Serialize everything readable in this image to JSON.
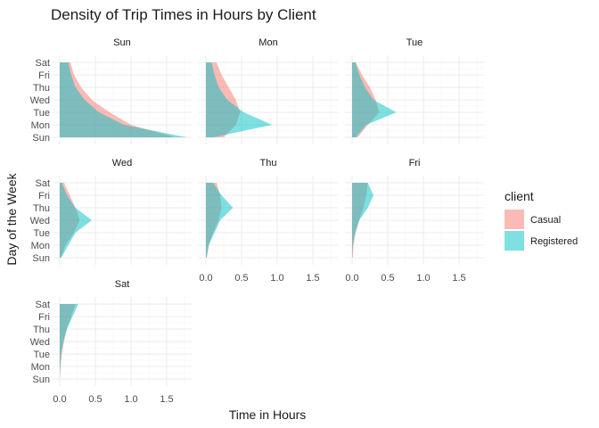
{
  "chart_data": {
    "type": "area",
    "title": "Density of Trip Times in Hours by Client",
    "xlabel": "Time in Hours",
    "ylabel": "Day of the Week",
    "xlim": [
      -0.05,
      1.8
    ],
    "x_ticks": [
      "0.0",
      "0.5",
      "1.0",
      "1.5"
    ],
    "x_tick_values": [
      0,
      0.5,
      1,
      1.5
    ],
    "y_categories": [
      "Sun",
      "Mon",
      "Tue",
      "Wed",
      "Thu",
      "Fri",
      "Sat"
    ],
    "grid": true,
    "legend": {
      "title": "client",
      "position": "right"
    },
    "facets": [
      "Sun",
      "Mon",
      "Tue",
      "Wed",
      "Thu",
      "Fri",
      "Sat"
    ],
    "series": [
      {
        "name": "Casual",
        "color": "#F8766D",
        "facets": {
          "Sun": [
            1.62,
            1.0,
            0.7,
            0.45,
            0.3,
            0.2,
            0.15
          ],
          "Mon": [
            0.25,
            0.42,
            0.48,
            0.42,
            0.32,
            0.22,
            0.15
          ],
          "Tue": [
            0.08,
            0.22,
            0.38,
            0.33,
            0.25,
            0.14,
            0.05
          ],
          "Wed": [
            0.02,
            0.08,
            0.2,
            0.28,
            0.22,
            0.14,
            0.06
          ],
          "Thu": [
            0.01,
            0.04,
            0.1,
            0.18,
            0.22,
            0.2,
            0.15
          ],
          "Fri": [
            0.01,
            0.02,
            0.05,
            0.1,
            0.16,
            0.2,
            0.22
          ],
          "Sat": [
            0.0,
            0.01,
            0.03,
            0.06,
            0.1,
            0.16,
            0.22
          ]
        }
      },
      {
        "name": "Registered",
        "color": "#00BFC4",
        "facets": {
          "Sun": [
            1.78,
            0.9,
            0.55,
            0.35,
            0.22,
            0.16,
            0.12
          ],
          "Mon": [
            0.1,
            0.93,
            0.53,
            0.3,
            0.18,
            0.12,
            0.08
          ],
          "Tue": [
            0.05,
            0.2,
            0.62,
            0.3,
            0.18,
            0.1,
            0.05
          ],
          "Wed": [
            0.02,
            0.12,
            0.22,
            0.45,
            0.22,
            0.1,
            0.03
          ],
          "Thu": [
            0.01,
            0.04,
            0.12,
            0.2,
            0.38,
            0.22,
            0.1
          ],
          "Fri": [
            0.0,
            0.01,
            0.04,
            0.1,
            0.22,
            0.3,
            0.22
          ],
          "Sat": [
            0.0,
            0.01,
            0.02,
            0.05,
            0.1,
            0.18,
            0.26
          ]
        }
      }
    ]
  }
}
